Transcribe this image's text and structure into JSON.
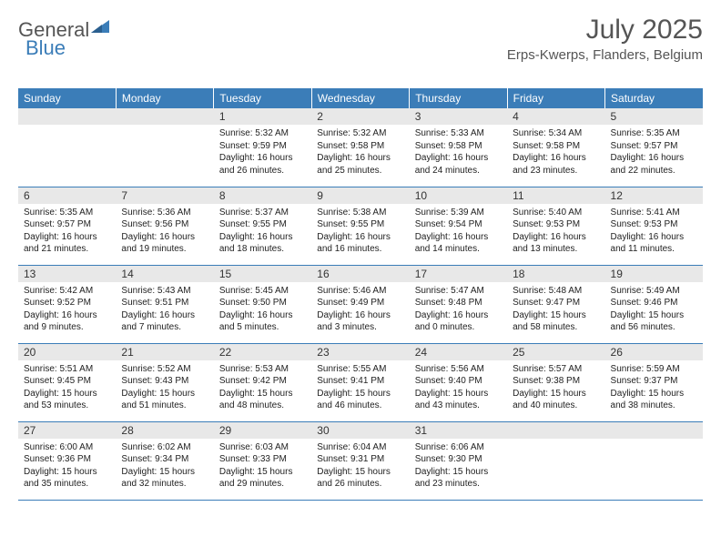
{
  "logo": {
    "text1": "General",
    "text2": "Blue"
  },
  "title": "July 2025",
  "location": "Erps-Kwerps, Flanders, Belgium",
  "colors": {
    "header_bg": "#3B7DB8",
    "header_text": "#ffffff",
    "daynum_bg": "#e8e8e8",
    "border": "#3B7DB8",
    "text": "#222222",
    "title_color": "#555555"
  },
  "weekdays": [
    "Sunday",
    "Monday",
    "Tuesday",
    "Wednesday",
    "Thursday",
    "Friday",
    "Saturday"
  ],
  "days": [
    {
      "n": "1",
      "sunrise": "5:32 AM",
      "sunset": "9:59 PM",
      "daylight": "16 hours and 26 minutes."
    },
    {
      "n": "2",
      "sunrise": "5:32 AM",
      "sunset": "9:58 PM",
      "daylight": "16 hours and 25 minutes."
    },
    {
      "n": "3",
      "sunrise": "5:33 AM",
      "sunset": "9:58 PM",
      "daylight": "16 hours and 24 minutes."
    },
    {
      "n": "4",
      "sunrise": "5:34 AM",
      "sunset": "9:58 PM",
      "daylight": "16 hours and 23 minutes."
    },
    {
      "n": "5",
      "sunrise": "5:35 AM",
      "sunset": "9:57 PM",
      "daylight": "16 hours and 22 minutes."
    },
    {
      "n": "6",
      "sunrise": "5:35 AM",
      "sunset": "9:57 PM",
      "daylight": "16 hours and 21 minutes."
    },
    {
      "n": "7",
      "sunrise": "5:36 AM",
      "sunset": "9:56 PM",
      "daylight": "16 hours and 19 minutes."
    },
    {
      "n": "8",
      "sunrise": "5:37 AM",
      "sunset": "9:55 PM",
      "daylight": "16 hours and 18 minutes."
    },
    {
      "n": "9",
      "sunrise": "5:38 AM",
      "sunset": "9:55 PM",
      "daylight": "16 hours and 16 minutes."
    },
    {
      "n": "10",
      "sunrise": "5:39 AM",
      "sunset": "9:54 PM",
      "daylight": "16 hours and 14 minutes."
    },
    {
      "n": "11",
      "sunrise": "5:40 AM",
      "sunset": "9:53 PM",
      "daylight": "16 hours and 13 minutes."
    },
    {
      "n": "12",
      "sunrise": "5:41 AM",
      "sunset": "9:53 PM",
      "daylight": "16 hours and 11 minutes."
    },
    {
      "n": "13",
      "sunrise": "5:42 AM",
      "sunset": "9:52 PM",
      "daylight": "16 hours and 9 minutes."
    },
    {
      "n": "14",
      "sunrise": "5:43 AM",
      "sunset": "9:51 PM",
      "daylight": "16 hours and 7 minutes."
    },
    {
      "n": "15",
      "sunrise": "5:45 AM",
      "sunset": "9:50 PM",
      "daylight": "16 hours and 5 minutes."
    },
    {
      "n": "16",
      "sunrise": "5:46 AM",
      "sunset": "9:49 PM",
      "daylight": "16 hours and 3 minutes."
    },
    {
      "n": "17",
      "sunrise": "5:47 AM",
      "sunset": "9:48 PM",
      "daylight": "16 hours and 0 minutes."
    },
    {
      "n": "18",
      "sunrise": "5:48 AM",
      "sunset": "9:47 PM",
      "daylight": "15 hours and 58 minutes."
    },
    {
      "n": "19",
      "sunrise": "5:49 AM",
      "sunset": "9:46 PM",
      "daylight": "15 hours and 56 minutes."
    },
    {
      "n": "20",
      "sunrise": "5:51 AM",
      "sunset": "9:45 PM",
      "daylight": "15 hours and 53 minutes."
    },
    {
      "n": "21",
      "sunrise": "5:52 AM",
      "sunset": "9:43 PM",
      "daylight": "15 hours and 51 minutes."
    },
    {
      "n": "22",
      "sunrise": "5:53 AM",
      "sunset": "9:42 PM",
      "daylight": "15 hours and 48 minutes."
    },
    {
      "n": "23",
      "sunrise": "5:55 AM",
      "sunset": "9:41 PM",
      "daylight": "15 hours and 46 minutes."
    },
    {
      "n": "24",
      "sunrise": "5:56 AM",
      "sunset": "9:40 PM",
      "daylight": "15 hours and 43 minutes."
    },
    {
      "n": "25",
      "sunrise": "5:57 AM",
      "sunset": "9:38 PM",
      "daylight": "15 hours and 40 minutes."
    },
    {
      "n": "26",
      "sunrise": "5:59 AM",
      "sunset": "9:37 PM",
      "daylight": "15 hours and 38 minutes."
    },
    {
      "n": "27",
      "sunrise": "6:00 AM",
      "sunset": "9:36 PM",
      "daylight": "15 hours and 35 minutes."
    },
    {
      "n": "28",
      "sunrise": "6:02 AM",
      "sunset": "9:34 PM",
      "daylight": "15 hours and 32 minutes."
    },
    {
      "n": "29",
      "sunrise": "6:03 AM",
      "sunset": "9:33 PM",
      "daylight": "15 hours and 29 minutes."
    },
    {
      "n": "30",
      "sunrise": "6:04 AM",
      "sunset": "9:31 PM",
      "daylight": "15 hours and 26 minutes."
    },
    {
      "n": "31",
      "sunrise": "6:06 AM",
      "sunset": "9:30 PM",
      "daylight": "15 hours and 23 minutes."
    }
  ],
  "labels": {
    "sunrise": "Sunrise:",
    "sunset": "Sunset:",
    "daylight": "Daylight:"
  },
  "layout": {
    "first_day_col": 2,
    "rows": 5,
    "cols": 7
  }
}
